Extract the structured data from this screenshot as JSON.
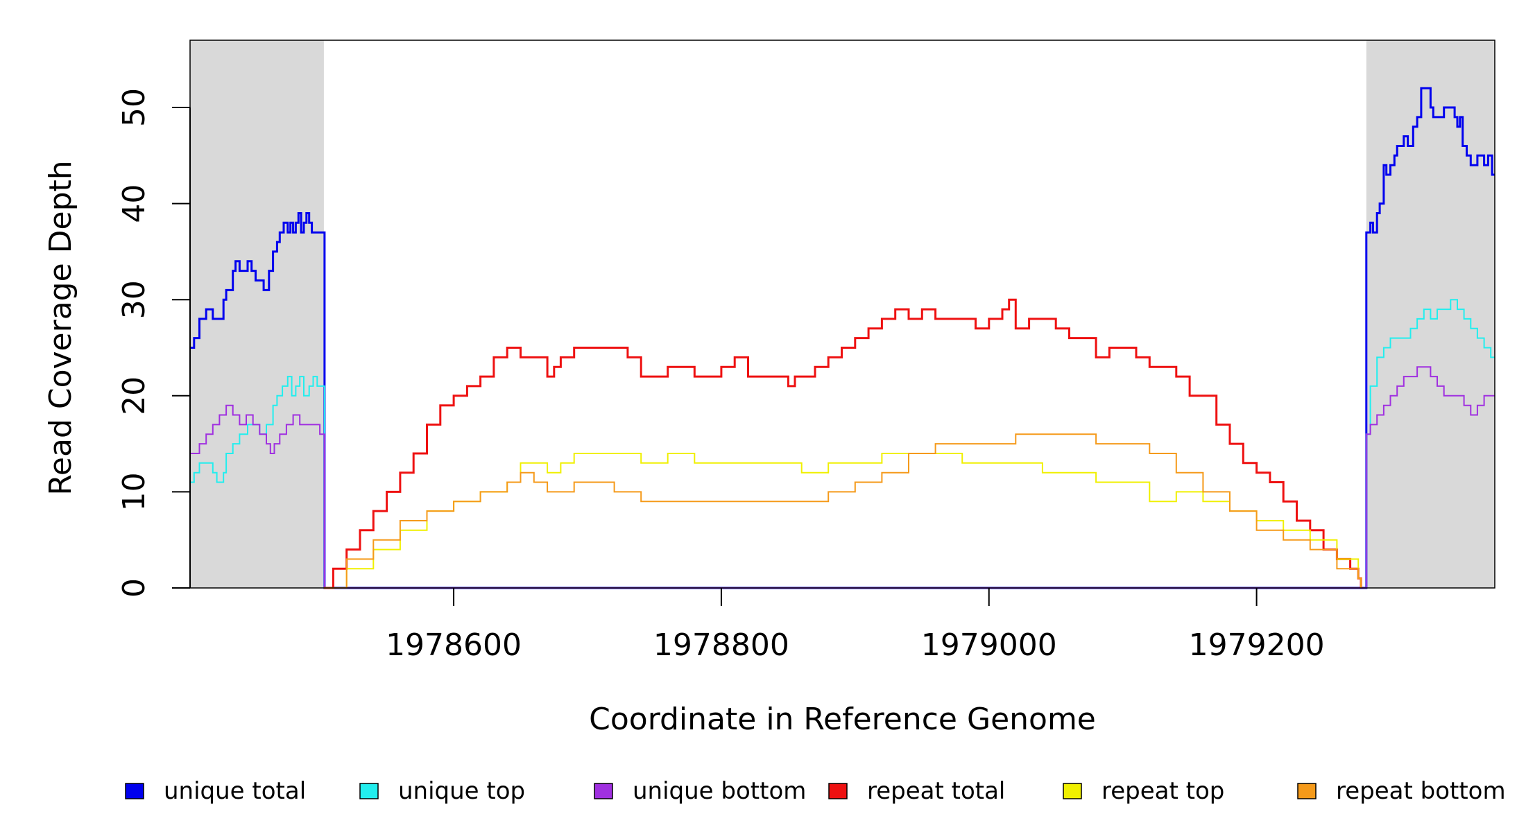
{
  "chart_data": {
    "type": "line",
    "title": "",
    "xlabel": "Coordinate in Reference Genome",
    "ylabel": "Read Coverage Depth",
    "xlim": [
      1978403,
      1979378
    ],
    "ylim": [
      0,
      57
    ],
    "x_ticks": [
      1978600,
      1978800,
      1979000,
      1979200
    ],
    "y_ticks": [
      0,
      10,
      20,
      30,
      40,
      50
    ],
    "x_tick_labels": [
      "1978600",
      "1978800",
      "1979000",
      "1979200"
    ],
    "y_tick_labels": [
      "0",
      "10",
      "20",
      "30",
      "40",
      "50"
    ],
    "shaded_regions": [
      [
        1978403,
        1978503
      ],
      [
        1979282,
        1979378
      ]
    ],
    "shade_color": "#d9d9d9",
    "grid": false,
    "legend_position": "bottom",
    "series": [
      {
        "name": "unique total",
        "color": "#0000ee",
        "x": [
          1978403,
          1978406,
          1978410,
          1978415,
          1978420,
          1978423,
          1978428,
          1978430,
          1978435,
          1978437,
          1978440,
          1978443,
          1978446,
          1978449,
          1978452,
          1978455,
          1978458,
          1978462,
          1978465,
          1978468,
          1978470,
          1978473,
          1978476,
          1978478,
          1978480,
          1978482,
          1978484,
          1978486,
          1978488,
          1978490,
          1978492,
          1978494,
          1978496,
          1978499,
          1978503,
          1978503.5,
          1979281.5,
          1979282,
          1979285,
          1979287,
          1979290,
          1979292,
          1979295,
          1979297,
          1979300,
          1979303,
          1979305,
          1979310,
          1979313,
          1979317,
          1979320,
          1979323,
          1979325,
          1979330,
          1979332,
          1979335,
          1979340,
          1979343,
          1979348,
          1979350,
          1979352,
          1979354,
          1979357,
          1979360,
          1979365,
          1979370,
          1979373,
          1979376,
          1979378
        ],
        "y": [
          25,
          26,
          28,
          29,
          28,
          28,
          30,
          31,
          33,
          34,
          33,
          33,
          34,
          33,
          32,
          32,
          31,
          33,
          35,
          36,
          37,
          38,
          37,
          38,
          37,
          38,
          39,
          37,
          38,
          39,
          38,
          37,
          37,
          37,
          37,
          0,
          0,
          37,
          38,
          37,
          39,
          40,
          44,
          43,
          44,
          45,
          46,
          47,
          46,
          48,
          49,
          52,
          52,
          50,
          49,
          49,
          50,
          50,
          49,
          48,
          49,
          46,
          45,
          44,
          45,
          44,
          45,
          43,
          43
        ]
      },
      {
        "name": "unique top",
        "color": "#22eeee",
        "x": [
          1978403,
          1978406,
          1978410,
          1978415,
          1978420,
          1978423,
          1978428,
          1978430,
          1978435,
          1978440,
          1978443,
          1978446,
          1978450,
          1978455,
          1978460,
          1978465,
          1978468,
          1978472,
          1978476,
          1978479,
          1978482,
          1978485,
          1978488,
          1978492,
          1978495,
          1978498,
          1978503,
          1978503.5,
          1979281.5,
          1979282,
          1979285,
          1979290,
          1979295,
          1979300,
          1979305,
          1979310,
          1979315,
          1979320,
          1979325,
          1979330,
          1979335,
          1979340,
          1979345,
          1979350,
          1979355,
          1979360,
          1979365,
          1979370,
          1979375,
          1979378
        ],
        "y": [
          11,
          12,
          13,
          13,
          12,
          11,
          12,
          14,
          15,
          16,
          16,
          17,
          17,
          16,
          17,
          19,
          20,
          21,
          22,
          20,
          21,
          22,
          20,
          21,
          22,
          21,
          21,
          0,
          0,
          16,
          21,
          24,
          25,
          26,
          26,
          26,
          27,
          28,
          29,
          28,
          29,
          29,
          30,
          29,
          28,
          27,
          26,
          25,
          24,
          24
        ]
      },
      {
        "name": "unique bottom",
        "color": "#a030e0",
        "x": [
          1978403,
          1978410,
          1978415,
          1978420,
          1978425,
          1978430,
          1978435,
          1978440,
          1978445,
          1978450,
          1978455,
          1978460,
          1978463,
          1978466,
          1978470,
          1978475,
          1978480,
          1978485,
          1978490,
          1978495,
          1978500,
          1978503,
          1978503.5,
          1979281.5,
          1979282,
          1979285,
          1979290,
          1979295,
          1979300,
          1979305,
          1979310,
          1979315,
          1979320,
          1979325,
          1979330,
          1979335,
          1979340,
          1979345,
          1979350,
          1979355,
          1979360,
          1979365,
          1979370,
          1979375,
          1979378
        ],
        "y": [
          14,
          15,
          16,
          17,
          18,
          19,
          18,
          17,
          18,
          17,
          16,
          15,
          14,
          15,
          16,
          17,
          18,
          17,
          17,
          17,
          16,
          16,
          0,
          0,
          16,
          17,
          18,
          19,
          20,
          21,
          22,
          22,
          23,
          23,
          22,
          21,
          20,
          20,
          20,
          19,
          18,
          19,
          20,
          20,
          20
        ]
      },
      {
        "name": "repeat total",
        "color": "#ee1111",
        "x": [
          1978503,
          1978510,
          1978520,
          1978530,
          1978540,
          1978550,
          1978560,
          1978570,
          1978580,
          1978590,
          1978600,
          1978610,
          1978620,
          1978630,
          1978640,
          1978650,
          1978660,
          1978670,
          1978675,
          1978680,
          1978690,
          1978700,
          1978710,
          1978720,
          1978730,
          1978740,
          1978750,
          1978760,
          1978770,
          1978780,
          1978790,
          1978800,
          1978810,
          1978820,
          1978830,
          1978840,
          1978850,
          1978855,
          1978860,
          1978870,
          1978880,
          1978890,
          1978900,
          1978910,
          1978920,
          1978930,
          1978940,
          1978950,
          1978960,
          1978970,
          1978980,
          1978990,
          1979000,
          1979010,
          1979015,
          1979020,
          1979030,
          1979040,
          1979050,
          1979060,
          1979070,
          1979080,
          1979090,
          1979100,
          1979110,
          1979120,
          1979130,
          1979140,
          1979150,
          1979160,
          1979170,
          1979180,
          1979190,
          1979200,
          1979210,
          1979220,
          1979230,
          1979240,
          1979250,
          1979260,
          1979270,
          1979276,
          1979278
        ],
        "y": [
          0,
          2,
          4,
          6,
          8,
          10,
          12,
          14,
          17,
          19,
          20,
          21,
          22,
          24,
          25,
          24,
          24,
          22,
          23,
          24,
          25,
          25,
          25,
          25,
          24,
          22,
          22,
          23,
          23,
          22,
          22,
          23,
          24,
          22,
          22,
          22,
          21,
          22,
          22,
          23,
          24,
          25,
          26,
          27,
          28,
          29,
          28,
          29,
          28,
          28,
          28,
          27,
          28,
          29,
          30,
          27,
          28,
          28,
          27,
          26,
          26,
          24,
          25,
          25,
          24,
          23,
          23,
          22,
          20,
          20,
          17,
          15,
          13,
          12,
          11,
          9,
          7,
          6,
          4,
          3,
          2,
          1,
          0
        ]
      },
      {
        "name": "repeat top",
        "color": "#f0f000",
        "x": [
          1978503,
          1978520,
          1978540,
          1978560,
          1978580,
          1978600,
          1978620,
          1978640,
          1978650,
          1978660,
          1978670,
          1978680,
          1978690,
          1978700,
          1978710,
          1978720,
          1978730,
          1978740,
          1978760,
          1978780,
          1978800,
          1978820,
          1978840,
          1978860,
          1978880,
          1978900,
          1978920,
          1978940,
          1978960,
          1978980,
          1979000,
          1979020,
          1979040,
          1979060,
          1979080,
          1979100,
          1979120,
          1979140,
          1979160,
          1979180,
          1979200,
          1979220,
          1979240,
          1979260,
          1979276,
          1979278
        ],
        "y": [
          0,
          2,
          4,
          6,
          8,
          9,
          10,
          11,
          13,
          13,
          12,
          13,
          14,
          14,
          14,
          14,
          14,
          13,
          14,
          13,
          13,
          13,
          13,
          12,
          13,
          13,
          14,
          14,
          14,
          13,
          13,
          13,
          12,
          12,
          11,
          11,
          9,
          10,
          9,
          8,
          7,
          6,
          5,
          3,
          1,
          0
        ]
      },
      {
        "name": "repeat bottom",
        "color": "#f59a1a",
        "x": [
          1978503,
          1978520,
          1978540,
          1978560,
          1978580,
          1978600,
          1978620,
          1978640,
          1978650,
          1978660,
          1978670,
          1978680,
          1978690,
          1978700,
          1978720,
          1978740,
          1978760,
          1978780,
          1978800,
          1978820,
          1978840,
          1978860,
          1978880,
          1978900,
          1978920,
          1978940,
          1978960,
          1978980,
          1979000,
          1979020,
          1979040,
          1979060,
          1979080,
          1979100,
          1979120,
          1979140,
          1979160,
          1979180,
          1979200,
          1979220,
          1979240,
          1979260,
          1979276,
          1979278
        ],
        "y": [
          0,
          3,
          5,
          7,
          8,
          9,
          10,
          11,
          12,
          11,
          10,
          10,
          11,
          11,
          10,
          9,
          9,
          9,
          9,
          9,
          9,
          9,
          10,
          11,
          12,
          14,
          15,
          15,
          15,
          16,
          16,
          16,
          15,
          15,
          14,
          12,
          10,
          8,
          6,
          5,
          4,
          2,
          1,
          0
        ]
      }
    ]
  }
}
